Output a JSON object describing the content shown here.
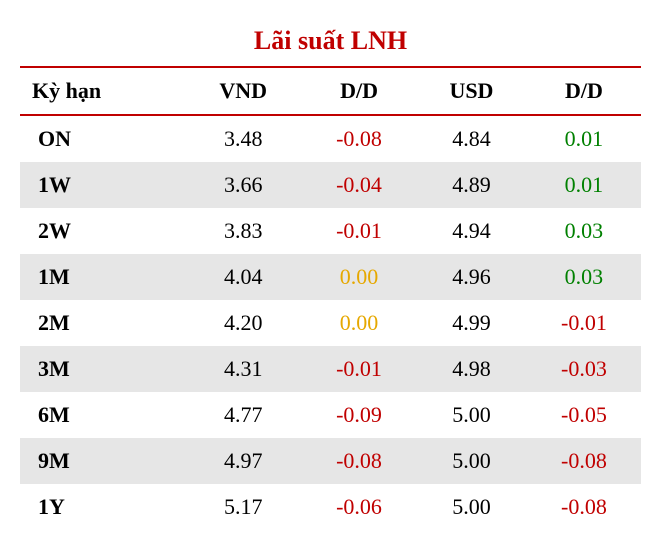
{
  "title": "Lãi suất LNH",
  "title_color": "#c00000",
  "border_color": "#c00000",
  "colors": {
    "neg": "#c00000",
    "pos": "#008000",
    "zero": "#e6a800",
    "text": "#000000",
    "alt_row": "#e6e6e6",
    "row": "#ffffff"
  },
  "columns": [
    "Kỳ hạn",
    "VND",
    "D/D",
    "USD",
    "D/D"
  ],
  "rows": [
    {
      "term": "ON",
      "vnd": "3.48",
      "dd1": "-0.08",
      "dd1_c": "neg",
      "usd": "4.84",
      "dd2": "0.01",
      "dd2_c": "pos"
    },
    {
      "term": "1W",
      "vnd": "3.66",
      "dd1": "-0.04",
      "dd1_c": "neg",
      "usd": "4.89",
      "dd2": "0.01",
      "dd2_c": "pos"
    },
    {
      "term": "2W",
      "vnd": "3.83",
      "dd1": "-0.01",
      "dd1_c": "neg",
      "usd": "4.94",
      "dd2": "0.03",
      "dd2_c": "pos"
    },
    {
      "term": "1M",
      "vnd": "4.04",
      "dd1": "0.00",
      "dd1_c": "zero",
      "usd": "4.96",
      "dd2": "0.03",
      "dd2_c": "pos"
    },
    {
      "term": "2M",
      "vnd": "4.20",
      "dd1": "0.00",
      "dd1_c": "zero",
      "usd": "4.99",
      "dd2": "-0.01",
      "dd2_c": "neg"
    },
    {
      "term": "3M",
      "vnd": "4.31",
      "dd1": "-0.01",
      "dd1_c": "neg",
      "usd": "4.98",
      "dd2": "-0.03",
      "dd2_c": "neg"
    },
    {
      "term": "6M",
      "vnd": "4.77",
      "dd1": "-0.09",
      "dd1_c": "neg",
      "usd": "5.00",
      "dd2": "-0.05",
      "dd2_c": "neg"
    },
    {
      "term": "9M",
      "vnd": "4.97",
      "dd1": "-0.08",
      "dd1_c": "neg",
      "usd": "5.00",
      "dd2": "-0.08",
      "dd2_c": "neg"
    },
    {
      "term": "1Y",
      "vnd": "5.17",
      "dd1": "-0.06",
      "dd1_c": "neg",
      "usd": "5.00",
      "dd2": "-0.08",
      "dd2_c": "neg"
    }
  ]
}
